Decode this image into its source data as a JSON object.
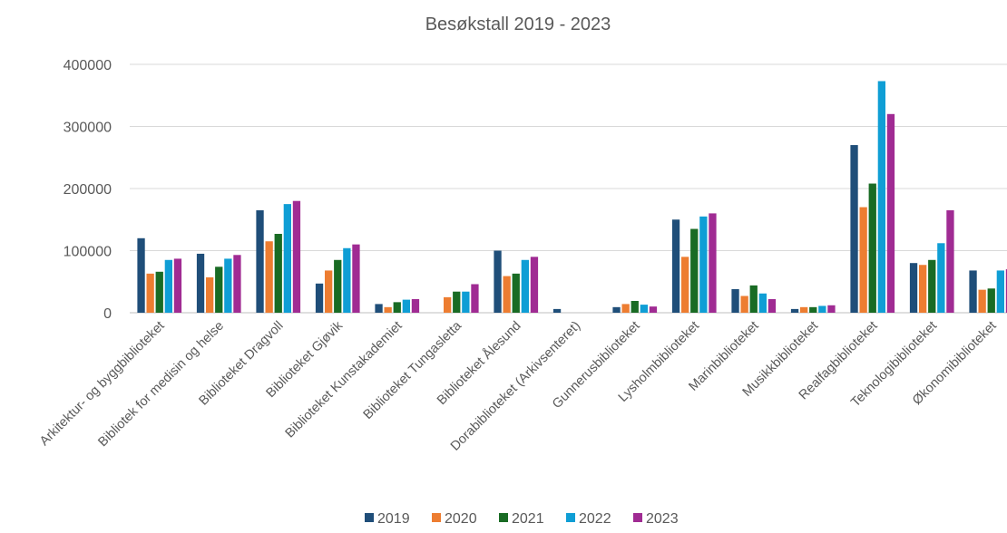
{
  "chart_data": {
    "type": "bar",
    "title": "Besøkstall 2019 - 2023",
    "xlabel": "",
    "ylabel": "",
    "ylim": [
      0,
      400000
    ],
    "yticks": [
      0,
      100000,
      200000,
      300000,
      400000
    ],
    "grid": true,
    "legend_position": "bottom",
    "categories": [
      "Arkitektur- og byggbiblioteket",
      "Bibliotek for medisin og helse",
      "Biblioteket Dragvoll",
      "Biblioteket Gjøvik",
      "Biblioteket Kunstakademiet",
      "Biblioteket Tungasletta",
      "Biblioteket Ålesund",
      "Dorabiblioteket (Arkivsenteret)",
      "Gunnerusbiblioteket",
      "Lysholmbiblioteket",
      "Marinbiblioteket",
      "Musikkbiblioteket",
      "Realfagbiblioteket",
      "Teknologibiblioteket",
      "Økonomibiblioteket"
    ],
    "series": [
      {
        "name": "2019",
        "color": "#1f4e79",
        "values": [
          120000,
          95000,
          165000,
          47000,
          14000,
          null,
          100000,
          6000,
          9000,
          150000,
          38000,
          6000,
          270000,
          80000,
          68000
        ]
      },
      {
        "name": "2020",
        "color": "#ed7d31",
        "values": [
          63000,
          57000,
          115000,
          68000,
          9000,
          25000,
          59000,
          null,
          14000,
          90000,
          27000,
          9000,
          170000,
          77000,
          37000
        ]
      },
      {
        "name": "2021",
        "color": "#196b24",
        "values": [
          66000,
          74000,
          127000,
          85000,
          17000,
          34000,
          63000,
          null,
          19000,
          135000,
          44000,
          9000,
          208000,
          85000,
          39000
        ]
      },
      {
        "name": "2022",
        "color": "#0f9ed5",
        "values": [
          85000,
          87000,
          175000,
          104000,
          21000,
          34000,
          85000,
          null,
          13000,
          155000,
          31000,
          11000,
          373000,
          112000,
          68000
        ]
      },
      {
        "name": "2023",
        "color": "#a02b93",
        "values": [
          87000,
          93000,
          180000,
          110000,
          22000,
          46000,
          90000,
          null,
          10000,
          160000,
          22000,
          12000,
          320000,
          165000,
          70000
        ]
      }
    ]
  }
}
